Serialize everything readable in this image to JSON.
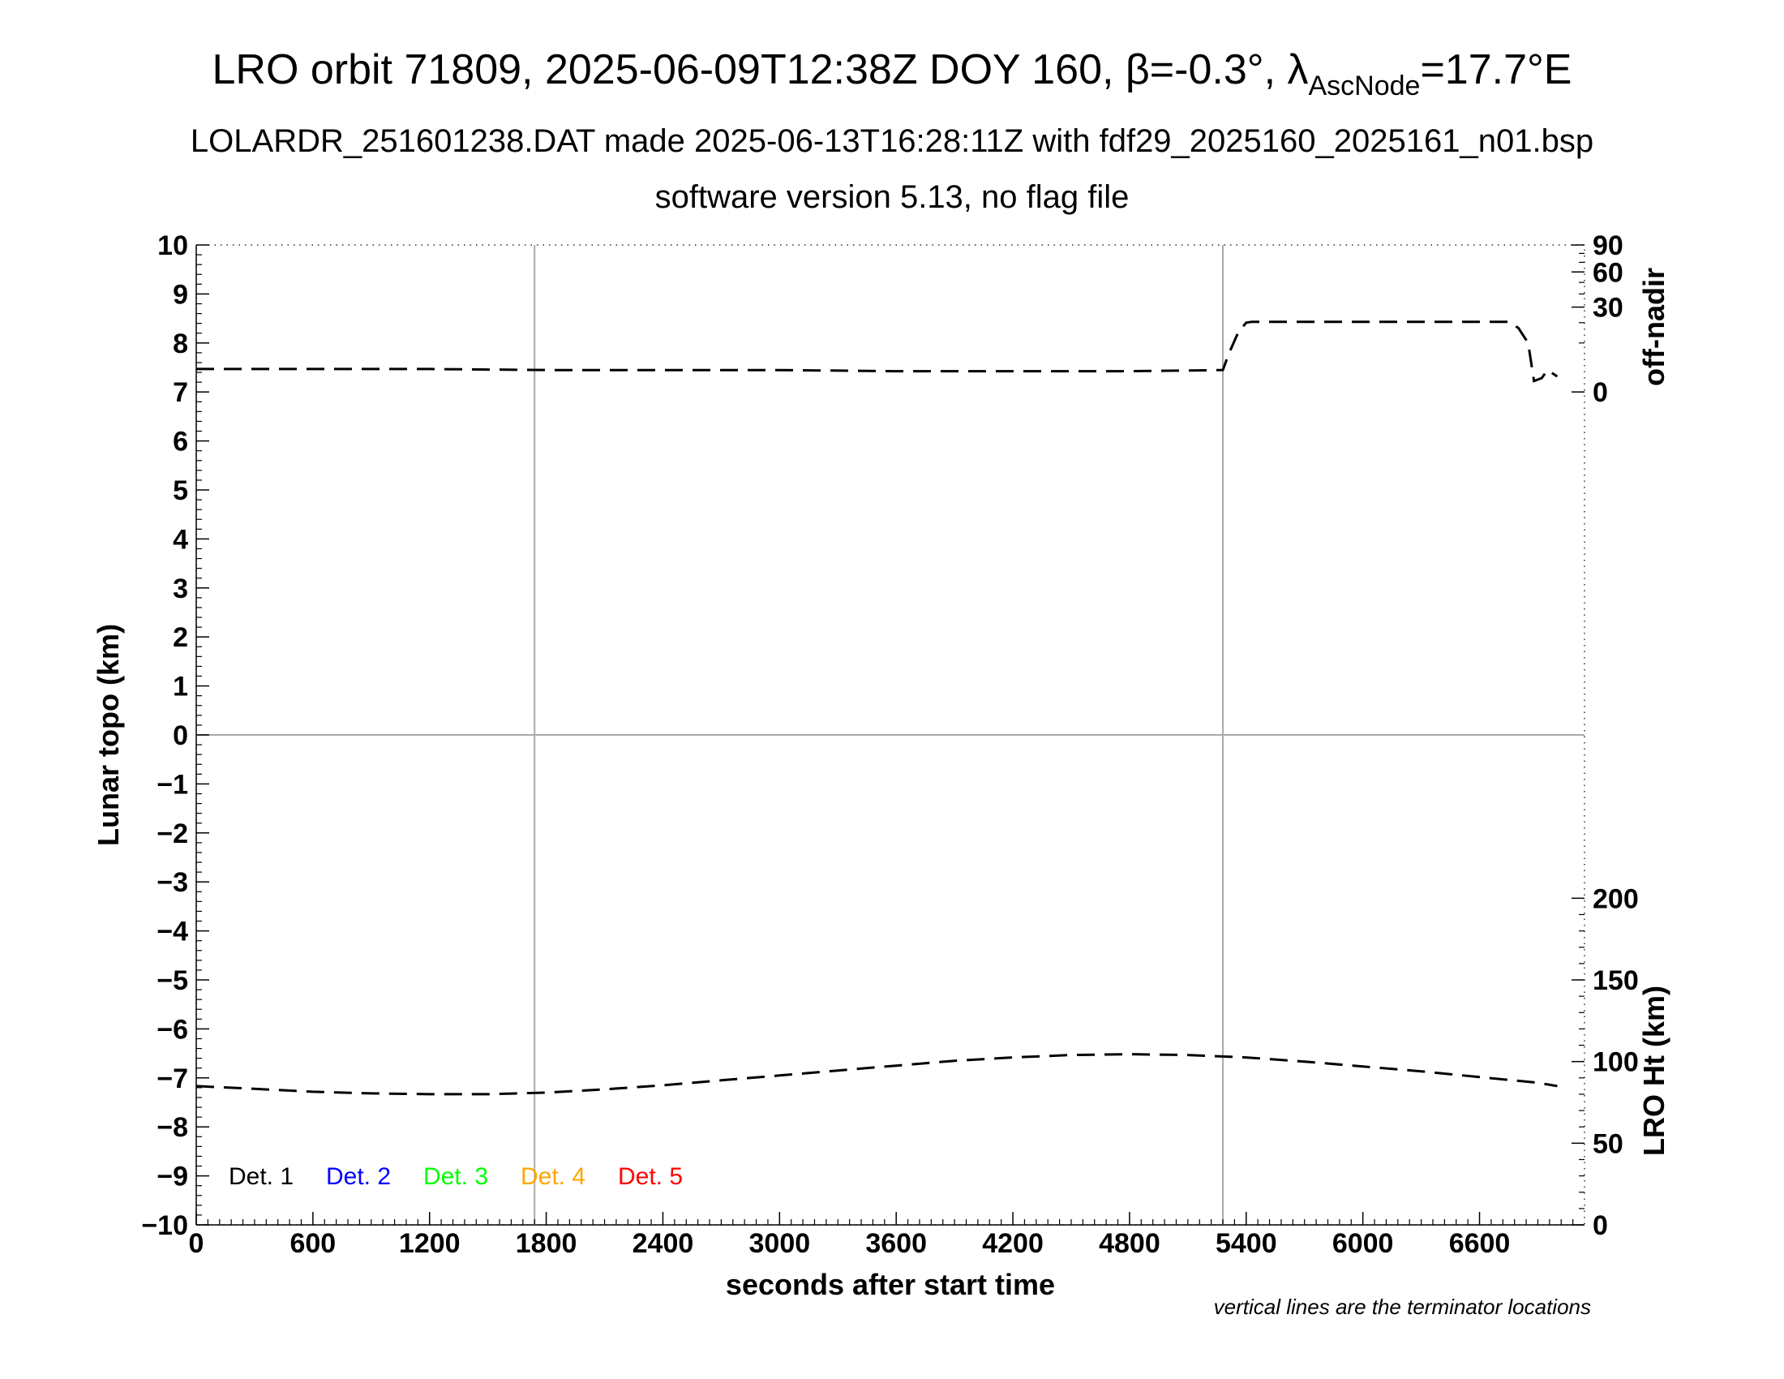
{
  "chart_data": {
    "type": "line",
    "title": {
      "main": "LRO orbit 71809, 2025-06-09T12:38Z DOY 160, β=-0.3°, λ",
      "sub": "AscNode",
      "tail": "=17.7°E"
    },
    "subtitle_1": "LOLARDR_251601238.DAT made 2025-06-13T16:28:11Z with fdf29_2025160_2025161_n01.bsp",
    "subtitle_2": "software version 5.13, no flag file",
    "xlabel": "seconds after start time",
    "ylabel_left": "Lunar topo (km)",
    "ylabel_right_top": "off-nadir",
    "ylabel_right_bottom": "LRO Ht (km)",
    "note": "vertical lines are the terminator locations",
    "xlim": [
      0,
      7140
    ],
    "ylim_left": [
      -10,
      10
    ],
    "x_ticks": [
      "0",
      "600",
      "1200",
      "1800",
      "2400",
      "3000",
      "3600",
      "4200",
      "4800",
      "5400",
      "6000",
      "6600"
    ],
    "x_tick_values": [
      0,
      600,
      1200,
      1800,
      2400,
      3000,
      3600,
      4200,
      4800,
      5400,
      6000,
      6600
    ],
    "y_ticks_left": [
      "10",
      "9",
      "8",
      "7",
      "6",
      "5",
      "4",
      "3",
      "2",
      "1",
      "0",
      "−1",
      "−2",
      "−3",
      "−4",
      "−5",
      "−6",
      "−7",
      "−8",
      "−9",
      "−10"
    ],
    "y_tick_values_left": [
      10,
      9,
      8,
      7,
      6,
      5,
      4,
      3,
      2,
      1,
      0,
      -1,
      -2,
      -3,
      -4,
      -5,
      -6,
      -7,
      -8,
      -9,
      -10
    ],
    "right_top_axis": {
      "ticks": [
        "90",
        "60",
        "30",
        "0"
      ],
      "tick_values": [
        90,
        60,
        30,
        0
      ]
    },
    "right_bottom_axis": {
      "ticks": [
        "200",
        "150",
        "100",
        "50",
        "0"
      ],
      "tick_values": [
        200,
        150,
        100,
        50,
        0
      ]
    },
    "terminator_lines_x": [
      1740,
      5280
    ],
    "grid": "terminators and zero line only",
    "legend": {
      "placement": "bottom-left",
      "entries": [
        {
          "label": "Det. 1",
          "color": "#000000"
        },
        {
          "label": "Det. 2",
          "color": "#0000ff"
        },
        {
          "label": "Det. 3",
          "color": "#00ff00"
        },
        {
          "label": "Det. 4",
          "color": "#ffa500"
        },
        {
          "label": "Det. 5",
          "color": "#ff0000"
        }
      ]
    },
    "series": [
      {
        "axis": "off-nadir",
        "style": "dashed",
        "color": "#000000",
        "x": [
          0,
          600,
          1200,
          1800,
          2400,
          3000,
          3600,
          4200,
          4800,
          5280,
          5310,
          5360,
          5400,
          5430,
          6000,
          6600,
          6750,
          6800,
          6850,
          6880,
          6920,
          6950,
          7000
        ],
        "values": [
          2.2,
          2.2,
          2.2,
          2.0,
          2.0,
          2.0,
          1.8,
          1.8,
          1.8,
          2.0,
          6,
          15,
          20,
          20.5,
          20.5,
          20.5,
          20.5,
          17,
          10,
          0.5,
          0.8,
          2,
          1
        ]
      },
      {
        "axis": "LRO Ht",
        "style": "dashed",
        "color": "#000000",
        "x": [
          0,
          300,
          600,
          900,
          1200,
          1500,
          1800,
          2100,
          2400,
          2700,
          3000,
          3300,
          3600,
          3900,
          4200,
          4500,
          4800,
          5100,
          5400,
          5700,
          6000,
          6300,
          6600,
          6900,
          7000
        ],
        "values": [
          85.0,
          83.3,
          81.5,
          80.5,
          80.0,
          80.0,
          81.0,
          83.0,
          85.5,
          88.5,
          91.5,
          94.5,
          97.5,
          100.5,
          102.5,
          104.0,
          104.5,
          104.0,
          102.5,
          100.0,
          97.0,
          94.0,
          90.5,
          87.0,
          85.0
        ]
      }
    ]
  }
}
